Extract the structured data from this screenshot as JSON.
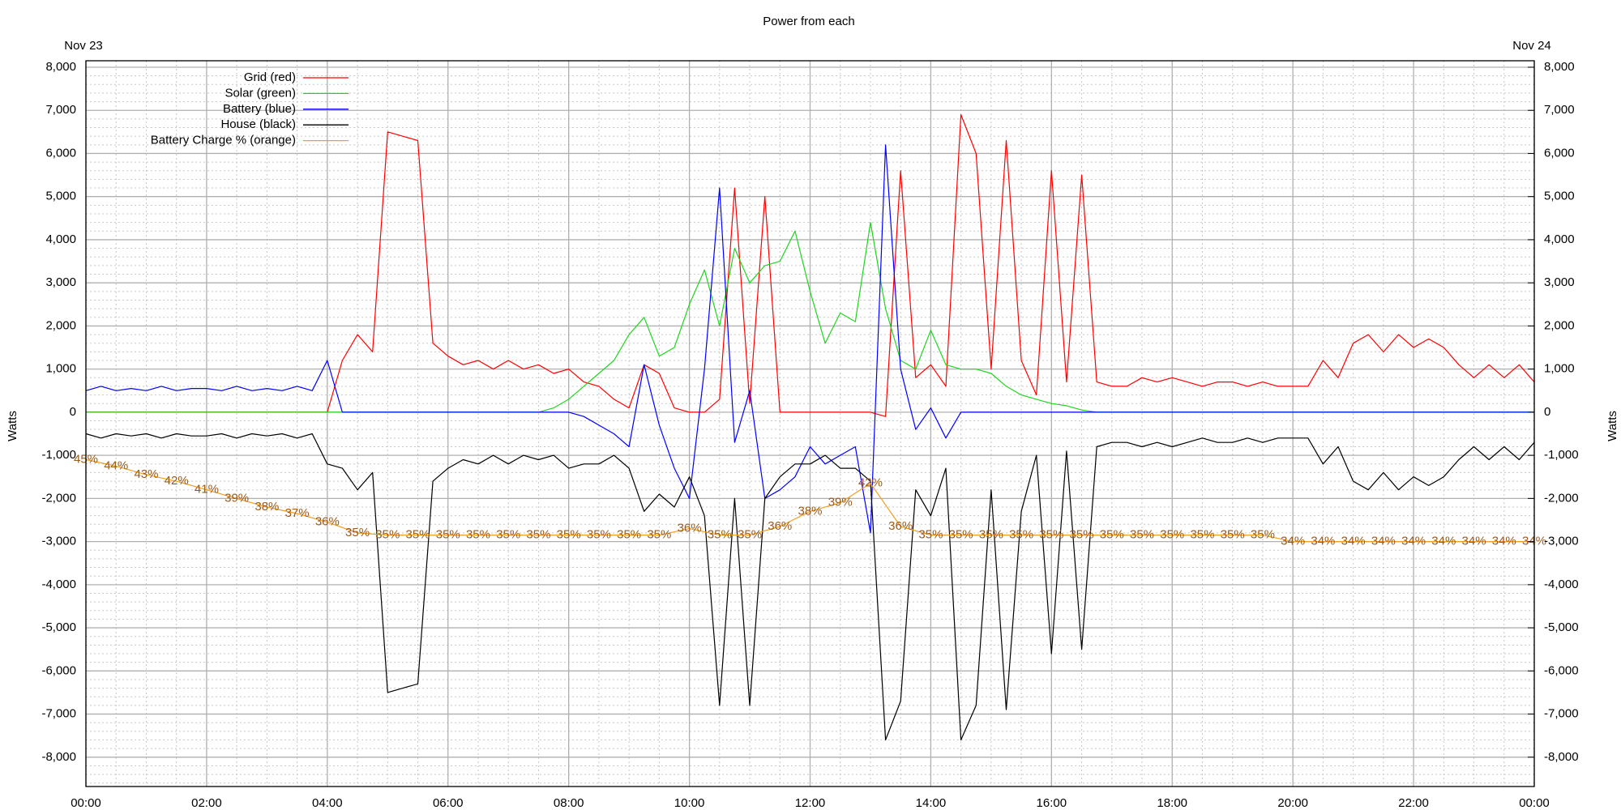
{
  "chart_data": {
    "type": "line",
    "title": "Power from each",
    "date_left": "Nov 23",
    "date_right": "Nov 24",
    "ylabel": "Watts",
    "y2label": "Watts",
    "grid": true,
    "minor_grid": true,
    "legend": "upper-left",
    "xlim": [
      0,
      24
    ],
    "xticks": [
      {
        "value": 0,
        "label": "00:00"
      },
      {
        "value": 2,
        "label": "02:00"
      },
      {
        "value": 4,
        "label": "04:00"
      },
      {
        "value": 6,
        "label": "06:00"
      },
      {
        "value": 8,
        "label": "08:00"
      },
      {
        "value": 10,
        "label": "10:00"
      },
      {
        "value": 12,
        "label": "12:00"
      },
      {
        "value": 14,
        "label": "14:00"
      },
      {
        "value": 16,
        "label": "16:00"
      },
      {
        "value": 18,
        "label": "18:00"
      },
      {
        "value": 20,
        "label": "20:00"
      },
      {
        "value": 22,
        "label": "22:00"
      },
      {
        "value": 24,
        "label": "00:00"
      }
    ],
    "ylim": [
      -8680,
      8150
    ],
    "yticks": [
      {
        "value": 8000,
        "label": "8,000"
      },
      {
        "value": 7000,
        "label": "7,000"
      },
      {
        "value": 6000,
        "label": "6,000"
      },
      {
        "value": 5000,
        "label": "5,000"
      },
      {
        "value": 4000,
        "label": "4,000"
      },
      {
        "value": 3000,
        "label": "3,000"
      },
      {
        "value": 2000,
        "label": "2,000"
      },
      {
        "value": 1000,
        "label": "1,000"
      },
      0,
      {
        "value": -1000,
        "label": "-1,000"
      },
      {
        "value": -2000,
        "label": "-2,000"
      },
      {
        "value": -3000,
        "label": "-3,000"
      },
      {
        "value": -4000,
        "label": "-4,000"
      },
      {
        "value": -5000,
        "label": "-5,000"
      },
      {
        "value": -6000,
        "label": "-6,000"
      },
      {
        "value": -7000,
        "label": "-7,000"
      },
      {
        "value": -8000,
        "label": "-8,000"
      }
    ],
    "y2lim": [
      -8680,
      8150
    ],
    "y2ticks": [
      {
        "value": 8000,
        "label": "8,000"
      },
      {
        "value": 7000,
        "label": "7,000"
      },
      {
        "value": 6000,
        "label": "6,000"
      },
      {
        "value": 5000,
        "label": "5,000"
      },
      {
        "value": 4000,
        "label": "4,000"
      },
      {
        "value": 3000,
        "label": "3,000"
      },
      {
        "value": 2000,
        "label": "2,000"
      },
      {
        "value": 1000,
        "label": "1,000"
      },
      0,
      {
        "value": -1000,
        "label": "-1,000"
      },
      {
        "value": -2000,
        "label": "-2,000"
      },
      {
        "value": -3000,
        "label": "-3,000"
      },
      {
        "value": -4000,
        "label": "-4,000"
      },
      {
        "value": -5000,
        "label": "-5,000"
      },
      {
        "value": -6000,
        "label": "-6,000"
      },
      {
        "value": -7000,
        "label": "-7,000"
      },
      {
        "value": -8000,
        "label": "-8,000"
      }
    ],
    "x": [
      0,
      0.25,
      0.5,
      0.75,
      1,
      1.25,
      1.5,
      1.75,
      2,
      2.25,
      2.5,
      2.75,
      3,
      3.25,
      3.5,
      3.75,
      4,
      4.25,
      4.5,
      4.75,
      5,
      5.25,
      5.5,
      5.75,
      6,
      6.25,
      6.5,
      6.75,
      7,
      7.25,
      7.5,
      7.75,
      8,
      8.25,
      8.5,
      8.75,
      9,
      9.25,
      9.5,
      9.75,
      10,
      10.25,
      10.5,
      10.75,
      11,
      11.25,
      11.5,
      11.75,
      12,
      12.25,
      12.5,
      12.75,
      13,
      13.25,
      13.5,
      13.75,
      14,
      14.25,
      14.5,
      14.75,
      15,
      15.25,
      15.5,
      15.75,
      16,
      16.25,
      16.5,
      16.75,
      17,
      17.25,
      17.5,
      17.75,
      18,
      18.25,
      18.5,
      18.75,
      19,
      19.25,
      19.5,
      19.75,
      20,
      20.25,
      20.5,
      20.75,
      21,
      21.25,
      21.5,
      21.75,
      22,
      22.25,
      22.5,
      22.75,
      23,
      23.25,
      23.5,
      23.75,
      24
    ],
    "series": [
      {
        "name": "Grid (red)",
        "color": "#ff0000",
        "values": [
          0,
          0,
          0,
          0,
          0,
          0,
          0,
          0,
          0,
          0,
          0,
          0,
          0,
          0,
          0,
          0,
          0,
          1200,
          1800,
          1400,
          6500,
          6400,
          6300,
          1600,
          1300,
          1100,
          1200,
          1000,
          1200,
          1000,
          1100,
          900,
          1000,
          700,
          600,
          300,
          100,
          1100,
          900,
          100,
          0,
          0,
          300,
          5200,
          200,
          5000,
          0,
          0,
          0,
          0,
          0,
          0,
          0,
          -100,
          5600,
          800,
          1100,
          600,
          6900,
          6000,
          1000,
          6300,
          1200,
          400,
          5600,
          700,
          5500,
          700,
          600,
          600,
          800,
          700,
          800,
          700,
          600,
          700,
          700,
          600,
          700,
          600,
          600,
          600,
          1200,
          800,
          1600,
          1800,
          1400,
          1800,
          1500,
          1700,
          1500,
          1100,
          800,
          1100,
          800,
          1100,
          700
        ]
      },
      {
        "name": "Solar (green)",
        "color": "#1fd61f",
        "values": [
          0,
          0,
          0,
          0,
          0,
          0,
          0,
          0,
          0,
          0,
          0,
          0,
          0,
          0,
          0,
          0,
          0,
          0,
          0,
          0,
          0,
          0,
          0,
          0,
          0,
          0,
          0,
          0,
          0,
          0,
          0,
          100,
          300,
          600,
          900,
          1200,
          1800,
          2200,
          1300,
          1500,
          2500,
          3300,
          2000,
          3800,
          3000,
          3400,
          3500,
          4200,
          2800,
          1600,
          2300,
          2100,
          4400,
          2400,
          1200,
          1000,
          1900,
          1100,
          1000,
          1000,
          900,
          600,
          400,
          300,
          200,
          150,
          50,
          0,
          0,
          0,
          0,
          0,
          0,
          0,
          0,
          0,
          0,
          0,
          0,
          0,
          0,
          0,
          0,
          0,
          0,
          0,
          0,
          0,
          0,
          0,
          0,
          0,
          0,
          0,
          0,
          0,
          0
        ]
      },
      {
        "name": "Battery (blue)",
        "color": "#0000ff",
        "values": [
          500,
          600,
          500,
          550,
          500,
          600,
          500,
          550,
          550,
          500,
          600,
          500,
          550,
          500,
          600,
          500,
          1200,
          0,
          0,
          0,
          0,
          0,
          0,
          0,
          0,
          0,
          0,
          0,
          0,
          0,
          0,
          0,
          0,
          -100,
          -300,
          -500,
          -800,
          1100,
          -300,
          -1300,
          -2000,
          1000,
          5200,
          -700,
          500,
          -2000,
          -1800,
          -1500,
          -800,
          -1200,
          -1000,
          -800,
          -2800,
          6200,
          1000,
          -400,
          100,
          -600,
          0,
          0,
          0,
          0,
          0,
          0,
          0,
          0,
          0,
          0,
          0,
          0,
          0,
          0,
          0,
          0,
          0,
          0,
          0,
          0,
          0,
          0,
          0,
          0,
          0,
          0,
          0,
          0,
          0,
          0,
          0,
          0,
          0,
          0,
          0,
          0,
          0,
          0,
          0
        ]
      },
      {
        "name": "House (black)",
        "color": "#000000",
        "values": [
          -500,
          -600,
          -500,
          -550,
          -500,
          -600,
          -500,
          -550,
          -550,
          -500,
          -600,
          -500,
          -550,
          -500,
          -600,
          -500,
          -1200,
          -1300,
          -1800,
          -1400,
          -6500,
          -6400,
          -6300,
          -1600,
          -1300,
          -1100,
          -1200,
          -1000,
          -1200,
          -1000,
          -1100,
          -1000,
          -1300,
          -1200,
          -1200,
          -1000,
          -1300,
          -2300,
          -1900,
          -2200,
          -1500,
          -2400,
          -6800,
          -2000,
          -6800,
          -2000,
          -1500,
          -1200,
          -1200,
          -1000,
          -1300,
          -1300,
          -1600,
          -7600,
          -6700,
          -1800,
          -2400,
          -1300,
          -7600,
          -6800,
          -1800,
          -6900,
          -2300,
          -1000,
          -5600,
          -900,
          -5500,
          -800,
          -700,
          -700,
          -800,
          -700,
          -800,
          -700,
          -600,
          -700,
          -700,
          -600,
          -700,
          -600,
          -600,
          -600,
          -1200,
          -800,
          -1600,
          -1800,
          -1400,
          -1800,
          -1500,
          -1700,
          -1500,
          -1100,
          -800,
          -1100,
          -800,
          -1100,
          -700
        ]
      },
      {
        "name": "Battery Charge % (orange)",
        "color": "#f0a020",
        "x": [
          0,
          0.5,
          1,
          1.5,
          2,
          2.5,
          3,
          3.5,
          4,
          4.5,
          5,
          5.5,
          6,
          6.5,
          7,
          7.5,
          8,
          8.5,
          9,
          9.5,
          10,
          10.5,
          11,
          11.5,
          12,
          12.5,
          13,
          13.5,
          14,
          14.5,
          15,
          15.5,
          16,
          16.5,
          17,
          17.5,
          18,
          18.5,
          19,
          19.5,
          20,
          20.5,
          21,
          21.5,
          22,
          22.5,
          23,
          23.5,
          24
        ],
        "values": [
          -1100,
          -1250,
          -1450,
          -1600,
          -1800,
          -2000,
          -2200,
          -2350,
          -2550,
          -2800,
          -2850,
          -2850,
          -2850,
          -2850,
          -2850,
          -2850,
          -2850,
          -2850,
          -2850,
          -2850,
          -2700,
          -2850,
          -2850,
          -2650,
          -2300,
          -2100,
          -1650,
          -2650,
          -2850,
          -2850,
          -2850,
          -2850,
          -2850,
          -2850,
          -2850,
          -2850,
          -2850,
          -2850,
          -2850,
          -2850,
          -3000,
          -3000,
          -3000,
          -3000,
          -3000,
          -3000,
          -3000,
          -3000,
          -3000
        ],
        "point_labels": [
          "45%",
          "44%",
          "43%",
          "42%",
          "41%",
          "39%",
          "38%",
          "37%",
          "36%",
          "35%",
          "35%",
          "35%",
          "35%",
          "35%",
          "35%",
          "35%",
          "35%",
          "35%",
          "35%",
          "35%",
          "36%",
          "35%",
          "35%",
          "36%",
          "38%",
          "39%",
          "42%",
          "36%",
          "35%",
          "35%",
          "35%",
          "35%",
          "35%",
          "35%",
          "35%",
          "35%",
          "35%",
          "35%",
          "35%",
          "35%",
          "34%",
          "34%",
          "34%",
          "34%",
          "34%",
          "34%",
          "34%",
          "34%",
          "34%"
        ]
      }
    ]
  }
}
